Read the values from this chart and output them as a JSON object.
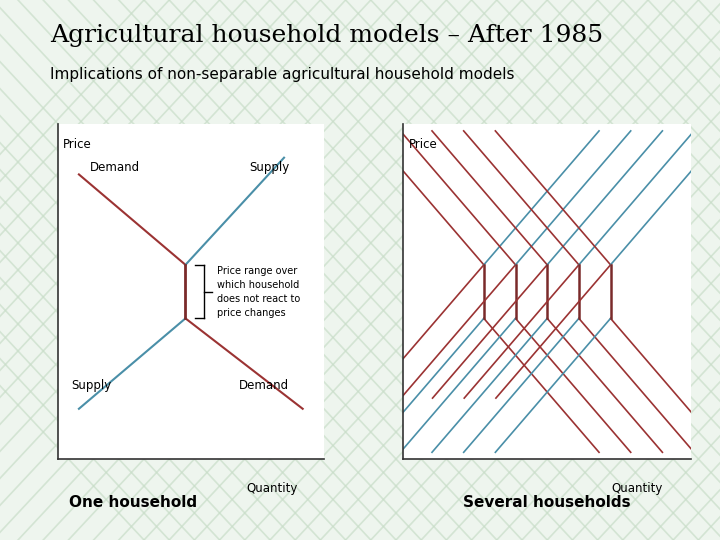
{
  "title": "Agricultural household models – After 1985",
  "subtitle": "Implications of non-separable agricultural household models",
  "bg_color": "#eef5ee",
  "demand_color": "#9b3333",
  "supply_color": "#4a8fa8",
  "vertical_color": "#7a2a2a",
  "axes_color": "#333333",
  "annotation_text": "Price range over\nwhich household\ndoes not react to\nprice changes",
  "one_household_label": "One household",
  "several_households_label": "Several households",
  "price_label": "Price",
  "quantity_label": "Quantity",
  "demand_label": "Demand",
  "supply_label": "Supply",
  "stripe_color": "#c8ddc8",
  "stripe_alpha": 0.7
}
